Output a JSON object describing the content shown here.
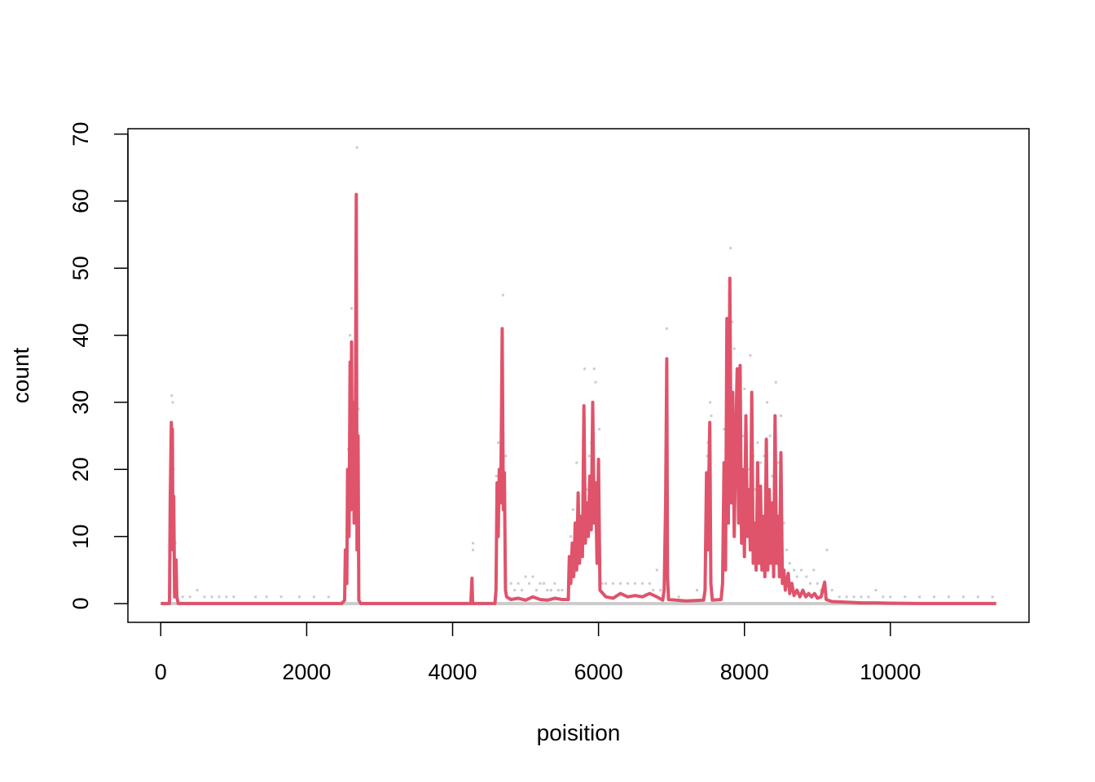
{
  "chart_data": {
    "type": "line",
    "title": "",
    "xlabel": "poisition",
    "ylabel": "count",
    "xlim": [
      -450,
      11900
    ],
    "ylim": [
      -2.8,
      70.8
    ],
    "x_ticks": [
      0,
      2000,
      4000,
      6000,
      8000,
      10000
    ],
    "y_ticks": [
      0,
      10,
      20,
      30,
      40,
      50,
      60,
      70
    ],
    "x_tick_labels": [
      "0",
      "2000",
      "4000",
      "6000",
      "8000",
      "10000"
    ],
    "y_tick_labels": [
      "0",
      "10",
      "20",
      "30",
      "40",
      "50",
      "60",
      "70"
    ],
    "grid": false,
    "legend": "none",
    "colors": {
      "line": "#df536b",
      "points": "#cccccc"
    },
    "series": [
      {
        "kind": "smoothed-line",
        "points": [
          [
            0,
            0
          ],
          [
            120,
            0
          ],
          [
            130,
            15
          ],
          [
            145,
            27
          ],
          [
            152,
            18
          ],
          [
            160,
            26
          ],
          [
            168,
            8
          ],
          [
            178,
            16
          ],
          [
            190,
            1
          ],
          [
            210,
            6.5
          ],
          [
            220,
            1
          ],
          [
            240,
            0
          ],
          [
            2480,
            0
          ],
          [
            2520,
            0.5
          ],
          [
            2530,
            8
          ],
          [
            2550,
            3
          ],
          [
            2560,
            20
          ],
          [
            2580,
            10
          ],
          [
            2595,
            36
          ],
          [
            2605,
            14
          ],
          [
            2615,
            39
          ],
          [
            2625,
            18
          ],
          [
            2638,
            30
          ],
          [
            2650,
            12
          ],
          [
            2665,
            21
          ],
          [
            2680,
            61
          ],
          [
            2690,
            8
          ],
          [
            2705,
            25
          ],
          [
            2715,
            0.5
          ],
          [
            2740,
            0
          ],
          [
            4250,
            0
          ],
          [
            4265,
            3.8
          ],
          [
            4275,
            0
          ],
          [
            4580,
            0
          ],
          [
            4595,
            2
          ],
          [
            4610,
            18
          ],
          [
            4625,
            10
          ],
          [
            4640,
            20
          ],
          [
            4660,
            15
          ],
          [
            4680,
            41
          ],
          [
            4695,
            14
          ],
          [
            4710,
            19.5
          ],
          [
            4725,
            2
          ],
          [
            4740,
            1
          ],
          [
            4800,
            0.6
          ],
          [
            4900,
            0.8
          ],
          [
            5000,
            0.5
          ],
          [
            5100,
            1
          ],
          [
            5200,
            0.6
          ],
          [
            5300,
            0.5
          ],
          [
            5400,
            0.8
          ],
          [
            5500,
            0.6
          ],
          [
            5585,
            0.6
          ],
          [
            5600,
            7
          ],
          [
            5620,
            3
          ],
          [
            5640,
            9
          ],
          [
            5660,
            4
          ],
          [
            5680,
            12
          ],
          [
            5700,
            5
          ],
          [
            5720,
            16.5
          ],
          [
            5740,
            6
          ],
          [
            5760,
            13
          ],
          [
            5780,
            7
          ],
          [
            5800,
            29.5
          ],
          [
            5820,
            9
          ],
          [
            5840,
            15
          ],
          [
            5860,
            10
          ],
          [
            5880,
            19
          ],
          [
            5900,
            11
          ],
          [
            5920,
            30
          ],
          [
            5940,
            12
          ],
          [
            5960,
            18
          ],
          [
            5980,
            6
          ],
          [
            6000,
            21.5
          ],
          [
            6020,
            2
          ],
          [
            6100,
            1
          ],
          [
            6200,
            0.8
          ],
          [
            6300,
            1.5
          ],
          [
            6400,
            1
          ],
          [
            6500,
            1.2
          ],
          [
            6600,
            1
          ],
          [
            6700,
            1.5
          ],
          [
            6800,
            1
          ],
          [
            6880,
            0.5
          ],
          [
            6900,
            2
          ],
          [
            6920,
            15
          ],
          [
            6935,
            36.5
          ],
          [
            6945,
            4
          ],
          [
            6960,
            0.6
          ],
          [
            7200,
            0.4
          ],
          [
            7440,
            0.5
          ],
          [
            7460,
            2
          ],
          [
            7480,
            19.5
          ],
          [
            7495,
            8
          ],
          [
            7510,
            18
          ],
          [
            7525,
            27
          ],
          [
            7540,
            3
          ],
          [
            7560,
            0.5
          ],
          [
            7680,
            0.6
          ],
          [
            7700,
            3
          ],
          [
            7720,
            21
          ],
          [
            7740,
            5
          ],
          [
            7760,
            42.5
          ],
          [
            7780,
            12
          ],
          [
            7800,
            48.5
          ],
          [
            7820,
            15
          ],
          [
            7840,
            31.5
          ],
          [
            7860,
            10
          ],
          [
            7880,
            24
          ],
          [
            7900,
            35
          ],
          [
            7920,
            12
          ],
          [
            7940,
            35.5
          ],
          [
            7960,
            9
          ],
          [
            7980,
            20
          ],
          [
            8000,
            7
          ],
          [
            8020,
            28
          ],
          [
            8040,
            10
          ],
          [
            8060,
            17
          ],
          [
            8080,
            8
          ],
          [
            8100,
            31.5
          ],
          [
            8120,
            6
          ],
          [
            8140,
            12
          ],
          [
            8160,
            5
          ],
          [
            8180,
            21
          ],
          [
            8200,
            6
          ],
          [
            8220,
            17.5
          ],
          [
            8240,
            5
          ],
          [
            8260,
            13
          ],
          [
            8280,
            4
          ],
          [
            8300,
            24.5
          ],
          [
            8320,
            5
          ],
          [
            8340,
            17
          ],
          [
            8360,
            6
          ],
          [
            8380,
            15
          ],
          [
            8400,
            4
          ],
          [
            8420,
            28
          ],
          [
            8440,
            6
          ],
          [
            8460,
            13
          ],
          [
            8480,
            4
          ],
          [
            8500,
            22.5
          ],
          [
            8520,
            3
          ],
          [
            8540,
            5
          ],
          [
            8560,
            2
          ],
          [
            8600,
            4.5
          ],
          [
            8620,
            1.5
          ],
          [
            8650,
            3
          ],
          [
            8680,
            1.2
          ],
          [
            8720,
            2
          ],
          [
            8760,
            1
          ],
          [
            8800,
            2
          ],
          [
            8840,
            1
          ],
          [
            8880,
            1.5
          ],
          [
            8920,
            1
          ],
          [
            8960,
            1.5
          ],
          [
            9000,
            0.8
          ],
          [
            9050,
            1
          ],
          [
            9100,
            3.2
          ],
          [
            9120,
            0.6
          ],
          [
            9200,
            0.3
          ],
          [
            9400,
            0.2
          ],
          [
            9600,
            0.1
          ],
          [
            9800,
            0.1
          ],
          [
            10000,
            0.05
          ],
          [
            10400,
            0
          ],
          [
            10800,
            0
          ],
          [
            11200,
            0
          ],
          [
            11450,
            0
          ]
        ]
      },
      {
        "kind": "raw-count-points",
        "points": [
          [
            150,
            31
          ],
          [
            165,
            30
          ],
          [
            150,
            18
          ],
          [
            175,
            20
          ],
          [
            200,
            9
          ],
          [
            230,
            1
          ],
          [
            500,
            2
          ],
          [
            300,
            1
          ],
          [
            400,
            1
          ],
          [
            600,
            1
          ],
          [
            700,
            1
          ],
          [
            800,
            1
          ],
          [
            900,
            1
          ],
          [
            1000,
            1
          ],
          [
            1300,
            1
          ],
          [
            1450,
            1
          ],
          [
            1650,
            1
          ],
          [
            1900,
            1
          ],
          [
            2100,
            1
          ],
          [
            2300,
            1
          ],
          [
            2545,
            11
          ],
          [
            2570,
            23
          ],
          [
            2595,
            40
          ],
          [
            2615,
            44
          ],
          [
            2630,
            28
          ],
          [
            2690,
            68
          ],
          [
            2710,
            29
          ],
          [
            2550,
            4
          ],
          [
            2600,
            20
          ],
          [
            4280,
            9
          ],
          [
            4280,
            8
          ],
          [
            4600,
            19
          ],
          [
            4625,
            24
          ],
          [
            4640,
            18
          ],
          [
            4690,
            46
          ],
          [
            4710,
            22
          ],
          [
            4730,
            22
          ],
          [
            4800,
            3
          ],
          [
            4850,
            2
          ],
          [
            4900,
            3
          ],
          [
            4950,
            2
          ],
          [
            5000,
            4
          ],
          [
            5050,
            3
          ],
          [
            5100,
            4
          ],
          [
            5150,
            2
          ],
          [
            5200,
            3
          ],
          [
            5250,
            3
          ],
          [
            5300,
            2
          ],
          [
            5350,
            2
          ],
          [
            5400,
            3
          ],
          [
            5450,
            2
          ],
          [
            5500,
            2
          ],
          [
            5620,
            10
          ],
          [
            5650,
            14
          ],
          [
            5700,
            21
          ],
          [
            5740,
            12
          ],
          [
            5780,
            16
          ],
          [
            5810,
            35
          ],
          [
            5840,
            17
          ],
          [
            5870,
            22
          ],
          [
            5900,
            24
          ],
          [
            5940,
            35
          ],
          [
            5960,
            33
          ],
          [
            6010,
            26
          ],
          [
            5990,
            17
          ],
          [
            6050,
            3
          ],
          [
            6100,
            3
          ],
          [
            6200,
            3
          ],
          [
            6300,
            3
          ],
          [
            6400,
            3
          ],
          [
            6500,
            3
          ],
          [
            6600,
            3
          ],
          [
            6700,
            3
          ],
          [
            6800,
            5
          ],
          [
            6750,
            2
          ],
          [
            6850,
            2
          ],
          [
            6935,
            41
          ],
          [
            6920,
            16
          ],
          [
            6910,
            12
          ],
          [
            7100,
            1
          ],
          [
            7350,
            2
          ],
          [
            7500,
            24
          ],
          [
            7530,
            30
          ],
          [
            7545,
            28
          ],
          [
            7490,
            22
          ],
          [
            7720,
            26
          ],
          [
            7760,
            37
          ],
          [
            7790,
            46
          ],
          [
            7810,
            53
          ],
          [
            7830,
            42
          ],
          [
            7860,
            38
          ],
          [
            7890,
            29
          ],
          [
            7920,
            35
          ],
          [
            7950,
            30
          ],
          [
            7980,
            25
          ],
          [
            8000,
            32
          ],
          [
            8050,
            20
          ],
          [
            8080,
            37
          ],
          [
            8120,
            22
          ],
          [
            8150,
            17
          ],
          [
            8180,
            24
          ],
          [
            8220,
            21
          ],
          [
            8270,
            22
          ],
          [
            8310,
            30
          ],
          [
            8350,
            25
          ],
          [
            8380,
            19
          ],
          [
            8430,
            33
          ],
          [
            8460,
            21
          ],
          [
            8500,
            28
          ],
          [
            8540,
            12
          ],
          [
            8580,
            8
          ],
          [
            8620,
            6
          ],
          [
            8680,
            5
          ],
          [
            8720,
            4
          ],
          [
            8780,
            5
          ],
          [
            8850,
            4
          ],
          [
            8900,
            3
          ],
          [
            8950,
            5
          ],
          [
            9000,
            3
          ],
          [
            9050,
            2
          ],
          [
            9130,
            8
          ],
          [
            9200,
            2
          ],
          [
            9300,
            1
          ],
          [
            9400,
            1
          ],
          [
            9500,
            1
          ],
          [
            9600,
            1
          ],
          [
            9700,
            1
          ],
          [
            9800,
            2
          ],
          [
            9900,
            1
          ],
          [
            10000,
            1
          ],
          [
            10200,
            1
          ],
          [
            10400,
            1
          ],
          [
            10600,
            1
          ],
          [
            10800,
            1
          ],
          [
            11000,
            1
          ],
          [
            11200,
            1
          ],
          [
            11400,
            1
          ]
        ]
      }
    ]
  }
}
